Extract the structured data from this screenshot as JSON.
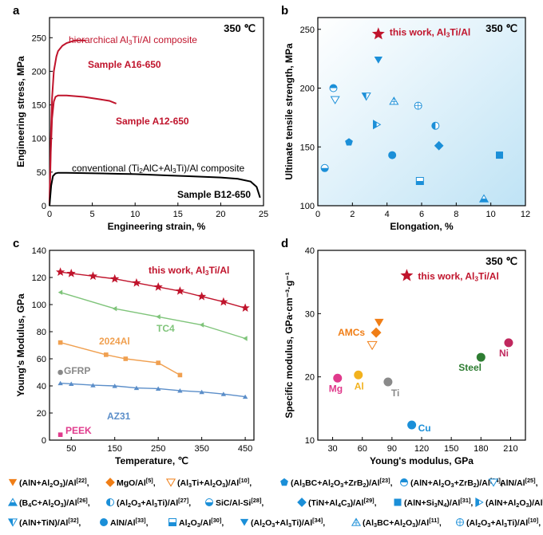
{
  "chart_data": [
    {
      "type": "line",
      "panel_label": "a",
      "condition": "350 ℃",
      "xlabel": "Engineering strain, %",
      "ylabel": "Engineering stress, MPa",
      "xlim": [
        0,
        25
      ],
      "ylim": [
        0,
        280
      ],
      "xticks": [
        0,
        5,
        10,
        15,
        20,
        25
      ],
      "yticks": [
        0,
        50,
        100,
        150,
        200,
        250
      ],
      "annotations": [
        "hierarchical Al₃Ti/Al composite",
        "conventional (Ti₂AlC+Al₃Ti)/Al composite"
      ],
      "series": [
        {
          "name": "Sample A16-650",
          "color": "#c0142c",
          "x": [
            0,
            0.15,
            0.3,
            0.5,
            0.8,
            1.0,
            1.5,
            2.0,
            2.5,
            3.0,
            3.5,
            4.2
          ],
          "y": [
            0,
            100,
            160,
            200,
            222,
            230,
            238,
            242,
            244,
            246,
            246,
            246
          ]
        },
        {
          "name": "Sample A12-650",
          "color": "#c0142c",
          "x": [
            0,
            0.15,
            0.3,
            0.5,
            0.7,
            1.0,
            2.0,
            3.0,
            4.0,
            5.0,
            6.0,
            7.0,
            7.8
          ],
          "y": [
            0,
            80,
            130,
            155,
            162,
            164,
            164,
            163,
            162,
            160,
            158,
            156,
            152
          ]
        },
        {
          "name": "Sample B12-650",
          "color": "#000000",
          "x": [
            0,
            0.2,
            0.4,
            0.7,
            1.0,
            2,
            4,
            6,
            8,
            10,
            12,
            14,
            16,
            18,
            20,
            22,
            23.5,
            24.2,
            24.6
          ],
          "y": [
            0,
            30,
            44,
            48,
            49,
            49,
            48.5,
            48,
            47.5,
            47,
            46,
            45,
            44,
            43,
            42,
            40,
            36,
            28,
            12
          ]
        }
      ]
    },
    {
      "type": "scatter",
      "panel_label": "b",
      "condition": "350 ℃",
      "xlabel": "Elongation, %",
      "ylabel": "Ultimate tensile strength, MPa",
      "xlim": [
        0,
        12
      ],
      "ylim": [
        100,
        260
      ],
      "xticks": [
        0,
        2,
        4,
        6,
        8,
        10,
        12
      ],
      "yticks": [
        100,
        150,
        200,
        250
      ],
      "highlight": {
        "label": "this work, Al₃Ti/Al",
        "x": 3.5,
        "y": 246,
        "color": "#c0142c"
      },
      "points": [
        {
          "x": 0.4,
          "y": 132,
          "m": "circle-bottom",
          "c": "#1b8fd8"
        },
        {
          "x": 0.9,
          "y": 200,
          "m": "circle-top",
          "c": "#1b8fd8"
        },
        {
          "x": 1.0,
          "y": 190,
          "m": "tri-down-open",
          "c": "#1b8fd8"
        },
        {
          "x": 1.8,
          "y": 154,
          "m": "pentagon",
          "c": "#1b8fd8"
        },
        {
          "x": 2.8,
          "y": 193,
          "m": "tri-down-half",
          "c": "#1b8fd8"
        },
        {
          "x": 3.4,
          "y": 169,
          "m": "tri-right-half",
          "c": "#1b8fd8"
        },
        {
          "x": 3.5,
          "y": 224,
          "m": "tri-down",
          "c": "#1b8fd8"
        },
        {
          "x": 4.3,
          "y": 143,
          "m": "circle",
          "c": "#1b8fd8"
        },
        {
          "x": 4.4,
          "y": 189,
          "m": "tri-up-cross",
          "c": "#1b8fd8"
        },
        {
          "x": 5.8,
          "y": 185,
          "m": "circle-cross",
          "c": "#1b8fd8"
        },
        {
          "x": 5.9,
          "y": 121,
          "m": "square-half",
          "c": "#1b8fd8"
        },
        {
          "x": 6.8,
          "y": 168,
          "m": "circle-left",
          "c": "#1b8fd8"
        },
        {
          "x": 7.0,
          "y": 151,
          "m": "diamond",
          "c": "#1b8fd8"
        },
        {
          "x": 9.6,
          "y": 106,
          "m": "tri-up-half",
          "c": "#1b8fd8"
        },
        {
          "x": 10.5,
          "y": 143,
          "m": "square",
          "c": "#1b8fd8"
        }
      ]
    },
    {
      "type": "line",
      "panel_label": "c",
      "xlabel": "Temperature, ℃",
      "ylabel": "Young's Modulus, GPa",
      "xlim": [
        0,
        470
      ],
      "ylim": [
        0,
        140
      ],
      "xticks": [
        50,
        150,
        250,
        350,
        450
      ],
      "yticks": [
        0,
        20,
        40,
        60,
        80,
        100,
        120,
        140
      ],
      "series": [
        {
          "name": "this work, Al₃Ti/Al",
          "color": "#c0142c",
          "marker": "star",
          "x": [
            25,
            50,
            100,
            150,
            200,
            250,
            300,
            350,
            400,
            450
          ],
          "y": [
            124,
            123,
            121,
            119,
            116,
            113,
            110,
            106,
            102,
            97.5
          ]
        },
        {
          "name": "TC4",
          "color": "#7fc47a",
          "marker": "tri-left",
          "x": [
            25,
            150,
            250,
            350,
            450
          ],
          "y": [
            109,
            97,
            91,
            85,
            75
          ]
        },
        {
          "name": "2024Al",
          "color": "#f0a050",
          "marker": "square",
          "x": [
            25,
            130,
            175,
            250,
            300
          ],
          "y": [
            72,
            63,
            60,
            57,
            48
          ]
        },
        {
          "name": "AZ31",
          "color": "#5b8ec9",
          "marker": "tri-up",
          "x": [
            25,
            50,
            100,
            150,
            200,
            250,
            300,
            350,
            400,
            450
          ],
          "y": [
            42,
            41.5,
            40.5,
            40,
            38.5,
            38,
            36.5,
            35.5,
            34,
            32
          ]
        },
        {
          "name": "GFRP",
          "color": "#888888",
          "marker": "circle",
          "x": [
            25
          ],
          "y": [
            50
          ]
        },
        {
          "name": "PEEK",
          "color": "#e03a8c",
          "marker": "square",
          "x": [
            25
          ],
          "y": [
            4
          ]
        }
      ]
    },
    {
      "type": "scatter",
      "panel_label": "d",
      "condition": "350 ℃",
      "xlabel": "Young's modulus, GPa",
      "ylabel": "Specific modulus, GPa·cm⁻³·g⁻¹",
      "xlim": [
        15,
        225
      ],
      "ylim": [
        10,
        40
      ],
      "xticks": [
        30,
        60,
        90,
        120,
        150,
        180,
        210
      ],
      "yticks": [
        10,
        20,
        30,
        40
      ],
      "highlight": {
        "label": "this work, Al₃Ti/Al",
        "x": 105,
        "y": 36,
        "color": "#c0142c"
      },
      "points": [
        {
          "name": "Mg",
          "x": 35,
          "y": 19.8,
          "c": "#e03a8c",
          "m": "circle"
        },
        {
          "name": "Al",
          "x": 56,
          "y": 20.3,
          "c": "#f2b21e",
          "m": "circle"
        },
        {
          "name": "Ti",
          "x": 86,
          "y": 19.2,
          "c": "#8a8a8a",
          "m": "circle"
        },
        {
          "name": "Cu",
          "x": 110,
          "y": 12.4,
          "c": "#1b8fd8",
          "m": "circle"
        },
        {
          "name": "Steel",
          "x": 180,
          "y": 23.1,
          "c": "#2e7d32",
          "m": "circle"
        },
        {
          "name": "Ni",
          "x": 208,
          "y": 25.4,
          "c": "#c0285e",
          "m": "circle"
        },
        {
          "name": "AMCs",
          "x": 70,
          "y": 25,
          "c": "#f07e16",
          "m": "tri-down-open"
        },
        {
          "name": "AMCs",
          "x": 74,
          "y": 27,
          "c": "#f07e16",
          "m": "diamond"
        },
        {
          "name": "AMCs",
          "x": 77,
          "y": 28.6,
          "c": "#f07e16",
          "m": "tri-down"
        }
      ]
    }
  ],
  "legend": [
    [
      {
        "m": "tri-down",
        "c": "#f07e16",
        "label": "(AlN+Al₂O₃)/Al",
        "ref": "[22]"
      },
      {
        "m": "diamond",
        "c": "#f07e16",
        "label": "MgO/Al",
        "ref": "[5]"
      },
      {
        "m": "tri-down-open",
        "c": "#f07e16",
        "label": "(Al₃Ti+Al₂O₃)/Al",
        "ref": "[10]"
      },
      {
        "m": "pentagon",
        "c": "#1b8fd8",
        "label": "(Al₃BC+Al₂O₃+ZrB₂)/Al",
        "ref": "[23]"
      },
      {
        "m": "circle-top",
        "c": "#1b8fd8",
        "label": "(AlN+Al₂O₃+ZrB₂)/Al",
        "ref": "[24]"
      },
      {
        "m": "tri-down-open",
        "c": "#1b8fd8",
        "label": "AlN/Al",
        "ref": "[25]"
      }
    ],
    [
      {
        "m": "tri-up-half",
        "c": "#1b8fd8",
        "label": "(B₄C+Al₂O₃)/Al",
        "ref": "[26]"
      },
      {
        "m": "circle-left",
        "c": "#1b8fd8",
        "label": "(Al₂O₃+Al₃Ti)/Al",
        "ref": "[27]"
      },
      {
        "m": "circle-bottom",
        "c": "#1b8fd8",
        "label": "SiC/Al-Si",
        "ref": "[28]"
      },
      {
        "m": "diamond",
        "c": "#1b8fd8",
        "label": "(TiN+Al₄C₃)/Al",
        "ref": "[29]"
      },
      {
        "m": "square",
        "c": "#1b8fd8",
        "label": "(AlN+Si₃N₄)/Al",
        "ref": "[31]"
      },
      {
        "m": "tri-right-half",
        "c": "#1b8fd8",
        "label": "(AlN+Al₂O₃)/Al",
        "ref": "[22]"
      }
    ],
    [
      {
        "m": "tri-down-half",
        "c": "#1b8fd8",
        "label": "(AlN+TiN)/Al",
        "ref": "[32]"
      },
      {
        "m": "circle",
        "c": "#1b8fd8",
        "label": "AlN/Al",
        "ref": "[33]"
      },
      {
        "m": "square-half",
        "c": "#1b8fd8",
        "label": "Al₂O₃/Al",
        "ref": "[30]"
      },
      {
        "m": "tri-down",
        "c": "#1b8fd8",
        "label": "(Al₂O₃+Al₃Ti)/Al",
        "ref": "[34]"
      },
      {
        "m": "tri-up-cross",
        "c": "#1b8fd8",
        "label": "(Al₃BC+Al₂O₃)/Al",
        "ref": "[11]"
      },
      {
        "m": "circle-cross",
        "c": "#1b8fd8",
        "label": "(Al₂O₃+Al₃Ti)/Al",
        "ref": "[10]"
      }
    ]
  ]
}
